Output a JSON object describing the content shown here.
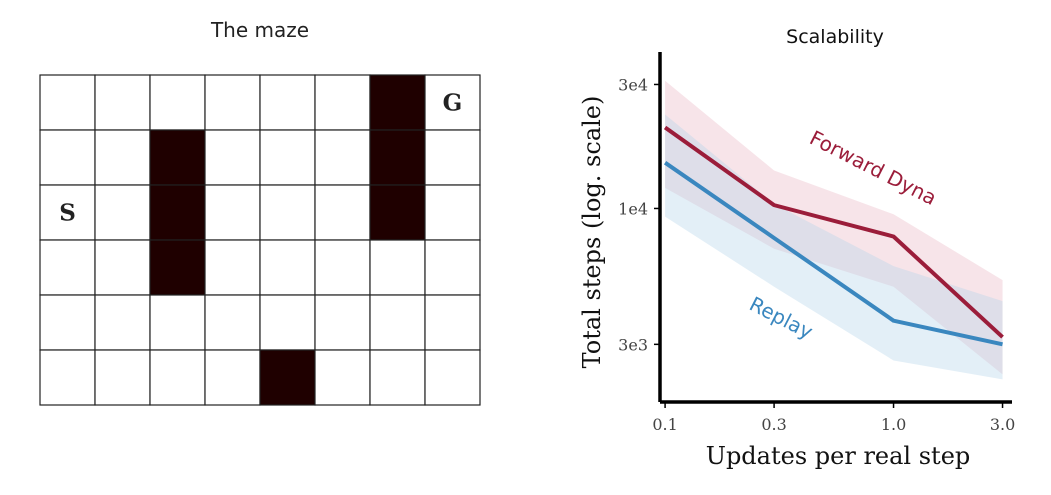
{
  "maze": {
    "title": "The maze",
    "rows": 6,
    "cols": 8,
    "walls": [
      [
        0,
        6
      ],
      [
        1,
        2
      ],
      [
        1,
        6
      ],
      [
        2,
        2
      ],
      [
        2,
        6
      ],
      [
        3,
        2
      ],
      [
        5,
        4
      ]
    ],
    "start": {
      "label": "S",
      "row": 2,
      "col": 0
    },
    "goal": {
      "label": "G",
      "row": 0,
      "col": 7
    },
    "wall_color": "#1f0000",
    "grid_color": "#222222"
  },
  "chart_data": {
    "type": "line",
    "title": "Scalability",
    "xlabel": "Updates per real step",
    "ylabel": "Total steps (log. scale)",
    "x_scale": "log",
    "y_scale": "log",
    "x": [
      0.1,
      0.3,
      1.0,
      3.0
    ],
    "x_tick_labels": [
      "0.1",
      "0.3",
      "1.0",
      "3.0"
    ],
    "y_ticks": [
      3000,
      10000,
      30000
    ],
    "y_tick_labels": [
      "3e3",
      "1e4",
      "3e4"
    ],
    "xlim": [
      0.095,
      3.3
    ],
    "ylim": [
      1800,
      40000
    ],
    "grid": false,
    "series": [
      {
        "name": "Forward Dyna",
        "color": "#9b1d3a",
        "band_color": "#e9b8c4",
        "values": [
          20500,
          10300,
          7800,
          3200
        ],
        "lower": [
          12000,
          7000,
          5000,
          2300
        ],
        "upper": [
          31000,
          14000,
          9500,
          5300
        ]
      },
      {
        "name": "Replay",
        "color": "#3a87bf",
        "band_color": "#b5d6ea",
        "values": [
          15000,
          7700,
          3700,
          3000
        ],
        "lower": [
          9300,
          5000,
          2600,
          2200
        ],
        "upper": [
          23000,
          10400,
          6000,
          4400
        ]
      }
    ]
  }
}
